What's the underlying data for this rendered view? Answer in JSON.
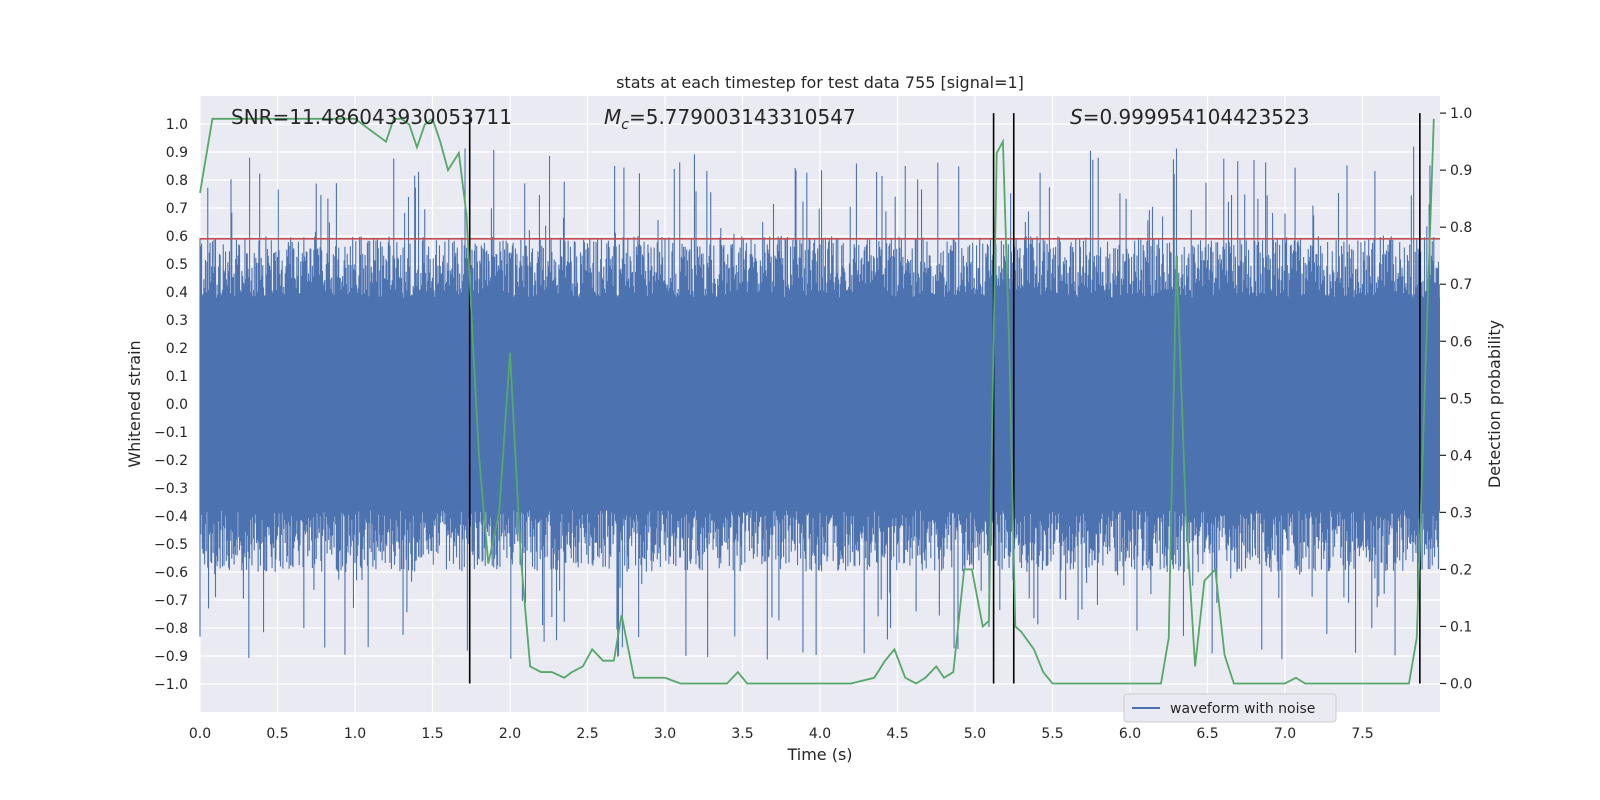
{
  "chart_data": {
    "type": "line",
    "title": "stats at each timestep for test data 755 [signal=1]",
    "xlabel": "Time (s)",
    "ylabel_left": "Whitened strain",
    "ylabel_right": "Detection probability",
    "xlim": [
      0.0,
      8.0
    ],
    "ylim_left": [
      -1.1,
      1.1
    ],
    "ylim_right": [
      -0.05,
      1.03
    ],
    "x_ticks": [
      "0.0",
      "0.5",
      "1.0",
      "1.5",
      "2.0",
      "2.5",
      "3.0",
      "3.5",
      "4.0",
      "4.5",
      "5.0",
      "5.5",
      "6.0",
      "6.5",
      "7.0",
      "7.5"
    ],
    "y_ticks_left": [
      "1.0",
      "0.9",
      "0.8",
      "0.7",
      "0.6",
      "0.5",
      "0.4",
      "0.3",
      "0.2",
      "0.1",
      "0.0",
      "−0.1",
      "−0.2",
      "−0.3",
      "−0.4",
      "−0.5",
      "−0.6",
      "−0.7",
      "−0.8",
      "−0.9",
      "−1.0"
    ],
    "y_ticks_right": [
      "1.0",
      "0.9",
      "0.8",
      "0.7",
      "0.6",
      "0.5",
      "0.4",
      "0.3",
      "0.2",
      "0.1",
      "0.0"
    ],
    "grid": true,
    "legend": {
      "placement": "lower-right",
      "entries": [
        "waveform with noise"
      ]
    },
    "annotations": {
      "snr": "SNR=11.486043930053711",
      "mc_symbol": "M",
      "mc_sub": "c",
      "mc_value": "=5.779003143310547",
      "s_symbol": "S",
      "s_value": "=0.999954104423523"
    },
    "threshold_strain": 0.59,
    "vertical_lines_x": [
      1.74,
      5.12,
      5.25,
      7.87
    ],
    "series": [
      {
        "name": "waveform with noise",
        "axis": "left",
        "color": "#4c72b0",
        "description_note": "",
        "samples": 1600,
        "amplitude_core": 0.38,
        "amplitude_peak": 0.92
      },
      {
        "axis": "right",
        "color": "#55a868",
        "x": [
          0.0,
          0.08,
          0.3,
          0.6,
          0.9,
          1.0,
          1.1,
          1.2,
          1.25,
          1.3,
          1.35,
          1.4,
          1.45,
          1.5,
          1.55,
          1.6,
          1.67,
          1.72,
          1.76,
          1.8,
          1.86,
          1.93,
          2.0,
          2.07,
          2.13,
          2.2,
          2.27,
          2.35,
          2.4,
          2.47,
          2.53,
          2.6,
          2.67,
          2.72,
          2.8,
          2.87,
          2.93,
          3.0,
          3.1,
          3.2,
          3.3,
          3.4,
          3.47,
          3.53,
          3.6,
          3.7,
          3.8,
          3.9,
          4.0,
          4.2,
          4.35,
          4.42,
          4.48,
          4.55,
          4.62,
          4.68,
          4.75,
          4.8,
          4.86,
          4.93,
          4.98,
          5.05,
          5.09,
          5.14,
          5.18,
          5.22,
          5.26,
          5.3,
          5.38,
          5.44,
          5.5,
          5.56,
          5.62,
          5.7,
          5.8,
          5.9,
          6.0,
          6.1,
          6.2,
          6.25,
          6.3,
          6.36,
          6.42,
          6.48,
          6.55,
          6.61,
          6.67,
          6.75,
          6.82,
          6.9,
          7.0,
          7.07,
          7.13,
          7.2,
          7.3,
          7.4,
          7.5,
          7.6,
          7.7,
          7.8,
          7.85,
          7.9,
          7.96
        ],
        "y": [
          0.86,
          0.99,
          0.99,
          0.99,
          0.99,
          0.99,
          0.97,
          0.95,
          0.99,
          0.99,
          0.98,
          0.94,
          0.98,
          0.99,
          0.95,
          0.9,
          0.93,
          0.82,
          0.6,
          0.4,
          0.21,
          0.3,
          0.58,
          0.22,
          0.03,
          0.02,
          0.02,
          0.01,
          0.02,
          0.03,
          0.06,
          0.04,
          0.04,
          0.12,
          0.01,
          0.01,
          0.01,
          0.01,
          0.0,
          0.0,
          0.0,
          0.0,
          0.02,
          0.0,
          0.0,
          0.0,
          0.0,
          0.0,
          0.0,
          0.0,
          0.01,
          0.04,
          0.06,
          0.01,
          0.0,
          0.01,
          0.03,
          0.01,
          0.02,
          0.2,
          0.2,
          0.1,
          0.11,
          0.93,
          0.95,
          0.6,
          0.1,
          0.09,
          0.06,
          0.02,
          0.0,
          0.0,
          0.0,
          0.0,
          0.0,
          0.0,
          0.0,
          0.0,
          0.0,
          0.08,
          0.75,
          0.3,
          0.03,
          0.18,
          0.2,
          0.05,
          0.0,
          0.0,
          0.0,
          0.0,
          0.0,
          0.01,
          0.0,
          0.0,
          0.0,
          0.0,
          0.0,
          0.0,
          0.0,
          0.0,
          0.08,
          0.5,
          0.99
        ]
      }
    ]
  }
}
